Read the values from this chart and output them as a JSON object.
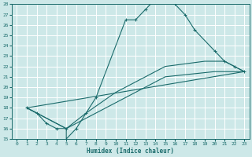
{
  "xlabel": "Humidex (Indice chaleur)",
  "xlim": [
    -0.5,
    23.5
  ],
  "ylim": [
    15,
    28
  ],
  "xticks": [
    0,
    1,
    2,
    3,
    4,
    5,
    6,
    7,
    8,
    9,
    10,
    11,
    12,
    13,
    14,
    15,
    16,
    17,
    18,
    19,
    20,
    21,
    22,
    23
  ],
  "yticks": [
    15,
    16,
    17,
    18,
    19,
    20,
    21,
    22,
    23,
    24,
    25,
    26,
    27,
    28
  ],
  "bg_color": "#cde8e8",
  "grid_color": "#b0d4d4",
  "line_color": "#1a6b6b",
  "lines": [
    {
      "x": [
        1,
        2,
        3,
        4,
        5,
        5,
        6,
        7,
        8,
        11,
        12,
        13,
        14,
        15,
        16,
        17,
        18,
        20,
        21,
        22,
        23
      ],
      "y": [
        18,
        17.5,
        16.5,
        16,
        16,
        15,
        16,
        17.5,
        19,
        26.5,
        26.5,
        27.5,
        28.5,
        28.5,
        28,
        27,
        25.5,
        23.5,
        22.5,
        22,
        21.5
      ],
      "marker": "+"
    },
    {
      "x": [
        1,
        2,
        5,
        7,
        10,
        15,
        19,
        20,
        21,
        22,
        23
      ],
      "y": [
        18,
        17.5,
        16,
        17.5,
        19.5,
        22,
        22.5,
        22.5,
        22.5,
        22,
        21.5
      ],
      "marker": null
    },
    {
      "x": [
        1,
        2,
        5,
        7,
        10,
        15,
        20,
        23
      ],
      "y": [
        18,
        17.5,
        16,
        17,
        18.5,
        21,
        21.5,
        21.5
      ],
      "marker": null
    },
    {
      "x": [
        1,
        23
      ],
      "y": [
        18,
        21.5
      ],
      "marker": null
    }
  ]
}
